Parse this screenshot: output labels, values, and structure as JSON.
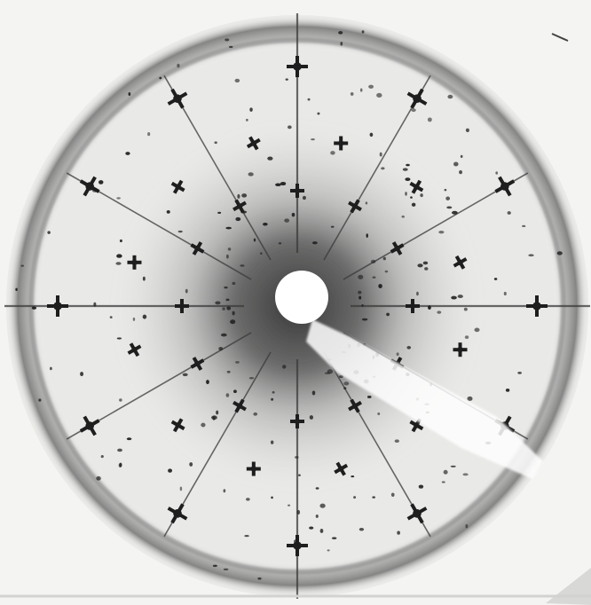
{
  "image": {
    "kind": "x-ray diffraction pattern (Laue photograph)",
    "palette": {
      "paper": "#f4f4f2",
      "film_dark": "#3c3c3c",
      "halo": "#6a6a6a",
      "spot": "#1e1e1e",
      "beam_stop": "#ffffff"
    }
  }
}
